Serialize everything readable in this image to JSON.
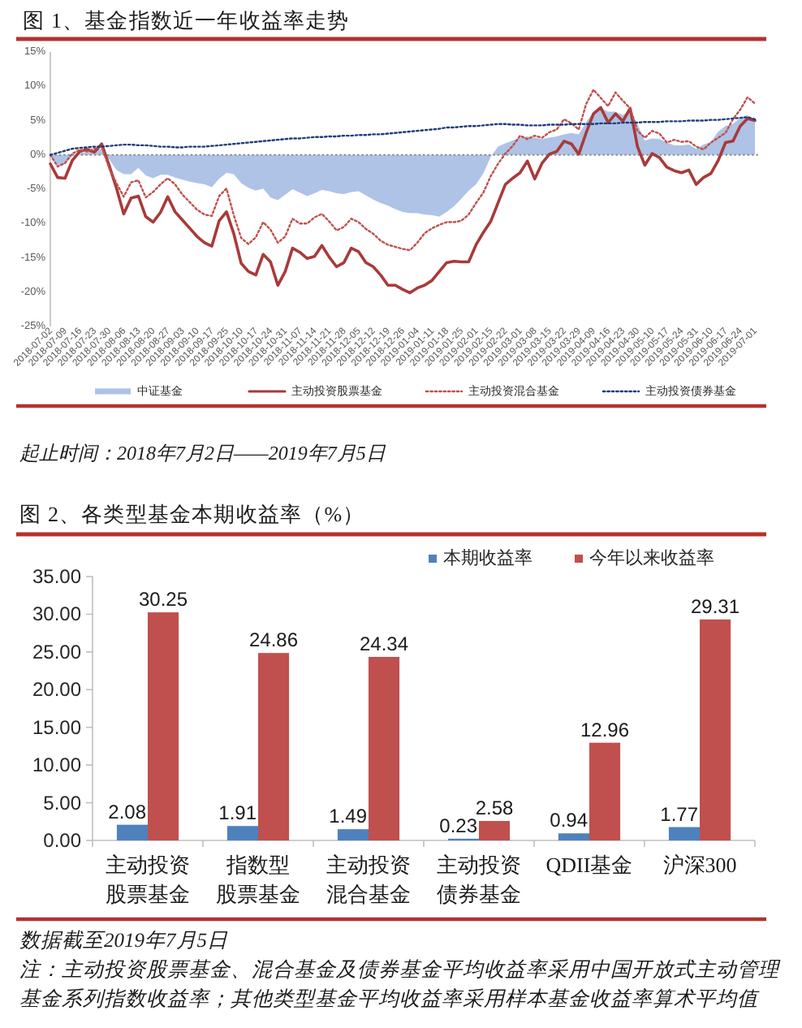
{
  "chart_data": [
    {
      "type": "line",
      "title": "图 1、基金指数近一年收益率走势",
      "categories": [
        "2018-07-02",
        null,
        "2018-07-09",
        null,
        "2018-07-16",
        null,
        "2018-07-23",
        null,
        "2018-07-30",
        null,
        "2018-08-06",
        null,
        "2018-08-13",
        null,
        "2018-08-20",
        null,
        "2018-08-27",
        null,
        "2018-09-03",
        null,
        "2018-09-10",
        null,
        "2018-09-17",
        null,
        "2018-09-25",
        null,
        "2018-10-10",
        null,
        "2018-10-17",
        null,
        "2018-10-24",
        null,
        "2018-10-31",
        null,
        "2018-11-07",
        null,
        "2018-11-14",
        null,
        "2018-11-21",
        null,
        "2018-11-28",
        null,
        "2018-12-05",
        null,
        "2018-12-12",
        null,
        "2018-12-19",
        null,
        "2018-12-26",
        null,
        "2019-01-04",
        null,
        "2019-01-11",
        null,
        "2019-01-18",
        null,
        "2019-01-25",
        null,
        "2019-02-01",
        null,
        "2019-02-15",
        null,
        "2019-02-22",
        null,
        "2019-03-01",
        null,
        "2019-03-08",
        null,
        "2019-03-15",
        null,
        "2019-03-22",
        null,
        "2019-03-29",
        null,
        "2019-04-09",
        null,
        "2019-04-16",
        null,
        "2019-04-23",
        null,
        "2019-04-30",
        null,
        "2019-05-10",
        null,
        "2019-05-17",
        null,
        "2019-05-24",
        null,
        "2019-05-31",
        null,
        "2019-06-10",
        null,
        "2019-06-17",
        null,
        "2019-06-24",
        null,
        "2019-07-01"
      ],
      "series": [
        {
          "name": "中证基金",
          "type": "area",
          "color": "#aec3e6",
          "values": [
            0,
            -1.6,
            -1.3,
            0,
            0.3,
            0.4,
            0.7,
            0.9,
            -0.6,
            -2.2,
            -2.8,
            -2.8,
            -1.9,
            -3.0,
            -3.4,
            -2.9,
            -2.9,
            -3.3,
            -3.6,
            -3.9,
            -4.1,
            -4.3,
            -4.7,
            -3.5,
            -2.6,
            -2.8,
            -4.1,
            -4.8,
            -5.2,
            -4.9,
            -6.2,
            -6.6,
            -5.8,
            -5.0,
            -5.5,
            -6.0,
            -5.6,
            -5.1,
            -5.3,
            -5.6,
            -5.7,
            -5.4,
            -5.3,
            -5.9,
            -6.5,
            -7.0,
            -7.4,
            -7.9,
            -8.3,
            -8.5,
            -8.5,
            -8.7,
            -8.8,
            -9.0,
            -8.3,
            -7.5,
            -6.4,
            -5.2,
            -4.3,
            -2.7,
            -0.3,
            1.2,
            1.7,
            2.1,
            2.5,
            2.7,
            2.5,
            2.3,
            2.5,
            2.7,
            3.0,
            3.2,
            3.0,
            4.8,
            6.2,
            6.8,
            6.3,
            6.3,
            5.8,
            6.5,
            4.5,
            2.1,
            2.4,
            2.3,
            1.8,
            1.4,
            1.4,
            1.5,
            0.9,
            1.5,
            1.9,
            3.4,
            4.2,
            4.5,
            5.4,
            5.8,
            5.0
          ]
        },
        {
          "name": "主动投资股票基金",
          "color": "#a93a3a",
          "line_style": "solid",
          "values": [
            -1.3,
            -3.3,
            -3.4,
            -0.8,
            0.5,
            0.8,
            0.4,
            1.6,
            -1.5,
            -4.8,
            -8.6,
            -6.3,
            -6.0,
            -9.0,
            -9.8,
            -8.4,
            -6.1,
            -8.3,
            -9.5,
            -10.7,
            -11.9,
            -12.8,
            -13.3,
            -9.6,
            -8.3,
            -11.5,
            -15.8,
            -17.0,
            -17.5,
            -14.5,
            -15.6,
            -19.0,
            -17.0,
            -13.6,
            -14.2,
            -15.1,
            -14.8,
            -13.2,
            -14.9,
            -16.3,
            -15.7,
            -13.6,
            -14.1,
            -15.7,
            -16.3,
            -17.5,
            -19.0,
            -19.0,
            -19.6,
            -20.1,
            -19.4,
            -19.0,
            -18.3,
            -17.0,
            -15.7,
            -15.5,
            -15.6,
            -15.6,
            -13.1,
            -11.3,
            -9.7,
            -7.0,
            -4.3,
            -3.4,
            -2.6,
            -0.9,
            -3.5,
            -1.2,
            0.1,
            0.5,
            2.0,
            1.6,
            0.1,
            3.2,
            6.0,
            6.9,
            4.7,
            6.0,
            4.9,
            6.8,
            1.2,
            -1.5,
            0.2,
            -0.4,
            -1.8,
            -2.3,
            -2.6,
            -2.2,
            -4.3,
            -3.3,
            -2.7,
            -0.8,
            1.8,
            2.0,
            4.2,
            5.3,
            5.0
          ]
        },
        {
          "name": "主动投资混合基金",
          "color": "#c0504d",
          "line_style": "dotted",
          "values": [
            0,
            -1.7,
            -1.2,
            0.2,
            0.7,
            0.5,
            0.9,
            1.2,
            -1.9,
            -4.1,
            -6.1,
            -4.0,
            -3.7,
            -6.2,
            -5.4,
            -4.3,
            -3.4,
            -4.3,
            -5.8,
            -6.9,
            -8.0,
            -8.7,
            -8.9,
            -6.0,
            -4.9,
            -8.8,
            -12.1,
            -13.0,
            -12.0,
            -9.8,
            -10.9,
            -12.8,
            -11.9,
            -9.3,
            -10.0,
            -10.0,
            -9.1,
            -8.6,
            -9.7,
            -11.0,
            -10.5,
            -9.3,
            -9.8,
            -10.8,
            -11.5,
            -12.5,
            -13.1,
            -13.4,
            -13.7,
            -13.9,
            -12.8,
            -11.4,
            -10.7,
            -10.2,
            -9.8,
            -9.8,
            -9.6,
            -8.7,
            -7.0,
            -5.5,
            -3.1,
            -1.3,
            0.2,
            1.3,
            2.8,
            2.3,
            2.8,
            2.5,
            3.3,
            3.7,
            5.2,
            4.6,
            3.7,
            7.4,
            9.5,
            8.3,
            7.1,
            9.1,
            7.9,
            6.8,
            3.5,
            2.5,
            3.5,
            3.1,
            1.8,
            2.2,
            1.9,
            2.0,
            1.2,
            0.8,
            1.8,
            2.5,
            3.2,
            5.2,
            6.6,
            8.4,
            7.5
          ]
        },
        {
          "name": "主动投资债券基金",
          "color": "#1f3d7a",
          "line_style": "dotted",
          "values": [
            0,
            0.3,
            0.6,
            0.9,
            1.0,
            1.1,
            1.2,
            1.2,
            1.3,
            1.4,
            1.5,
            1.5,
            1.4,
            1.4,
            1.3,
            1.2,
            1.2,
            1.1,
            1.1,
            1.2,
            1.2,
            1.2,
            1.3,
            1.4,
            1.5,
            1.6,
            1.7,
            1.8,
            1.9,
            2.0,
            2.1,
            2.2,
            2.3,
            2.4,
            2.4,
            2.5,
            2.6,
            2.6,
            2.7,
            2.7,
            2.8,
            2.8,
            2.9,
            2.9,
            3.0,
            3.0,
            3.1,
            3.2,
            3.3,
            3.4,
            3.5,
            3.6,
            3.7,
            3.8,
            4.0,
            4.0,
            4.1,
            4.2,
            4.2,
            4.3,
            4.4,
            4.5,
            4.5,
            4.4,
            4.4,
            4.3,
            4.3,
            4.3,
            4.4,
            4.4,
            4.4,
            4.5,
            4.5,
            4.5,
            4.5,
            4.6,
            4.6,
            4.6,
            4.7,
            4.7,
            4.7,
            4.8,
            4.8,
            4.8,
            4.9,
            4.9,
            4.9,
            5.0,
            5.0,
            5.0,
            5.1,
            5.1,
            5.2,
            5.3,
            5.4,
            5.5,
            5.2
          ]
        }
      ],
      "ylim": [
        -25,
        15
      ],
      "yticks": [
        {
          "value": -25,
          "label": "-25%"
        },
        {
          "value": -20,
          "label": "-20%"
        },
        {
          "value": -15,
          "label": "-15%"
        },
        {
          "value": -10,
          "label": "-10%"
        },
        {
          "value": -5,
          "label": "-5%"
        },
        {
          "value": 0,
          "label": "0%"
        },
        {
          "value": 5,
          "label": "5%"
        },
        {
          "value": 10,
          "label": "10%"
        },
        {
          "value": 15,
          "label": "15%"
        }
      ],
      "ref_lines": [
        {
          "axis": "y",
          "value": 0,
          "color": "#8c8c8c",
          "line_style": "dotted"
        }
      ],
      "legend": "bottom",
      "annotations": [
        "起止时间：2018年7月2日——2019年7月5日"
      ]
    },
    {
      "type": "bar",
      "title": "图 2、各类型基金本期收益率（%）",
      "categories": [
        "主动投资股票基金",
        "指数型股票基金",
        "主动投资混合基金",
        "主动投资债券基金",
        "QDII基金",
        "沪深300"
      ],
      "series": [
        {
          "name": "本期收益率",
          "color": "#4f81bd",
          "values": [
            2.08,
            1.91,
            1.49,
            0.23,
            0.94,
            1.77
          ]
        },
        {
          "name": "今年以来收益率",
          "color": "#c0504d",
          "values": [
            30.25,
            24.86,
            24.34,
            2.58,
            12.96,
            29.31
          ]
        }
      ],
      "ylim": [
        0,
        35
      ],
      "yticks": [
        {
          "value": 0,
          "label": "0.00"
        },
        {
          "value": 5,
          "label": "5.00"
        },
        {
          "value": 10,
          "label": "10.00"
        },
        {
          "value": 15,
          "label": "15.00"
        },
        {
          "value": 20,
          "label": "20.00"
        },
        {
          "value": 25,
          "label": "25.00"
        },
        {
          "value": 30,
          "label": "30.00"
        },
        {
          "value": 35,
          "label": "35.00"
        }
      ],
      "data_labels": true,
      "legend": "top right",
      "annotations": [
        "数据截至2019年7月5日",
        "注：主动投资股票基金、混合基金及债券基金平均收益率采用中国开放式主动管理基金系列指数收益率；其他类型基金平均收益率采用样本基金收益率算术平均值"
      ]
    }
  ]
}
